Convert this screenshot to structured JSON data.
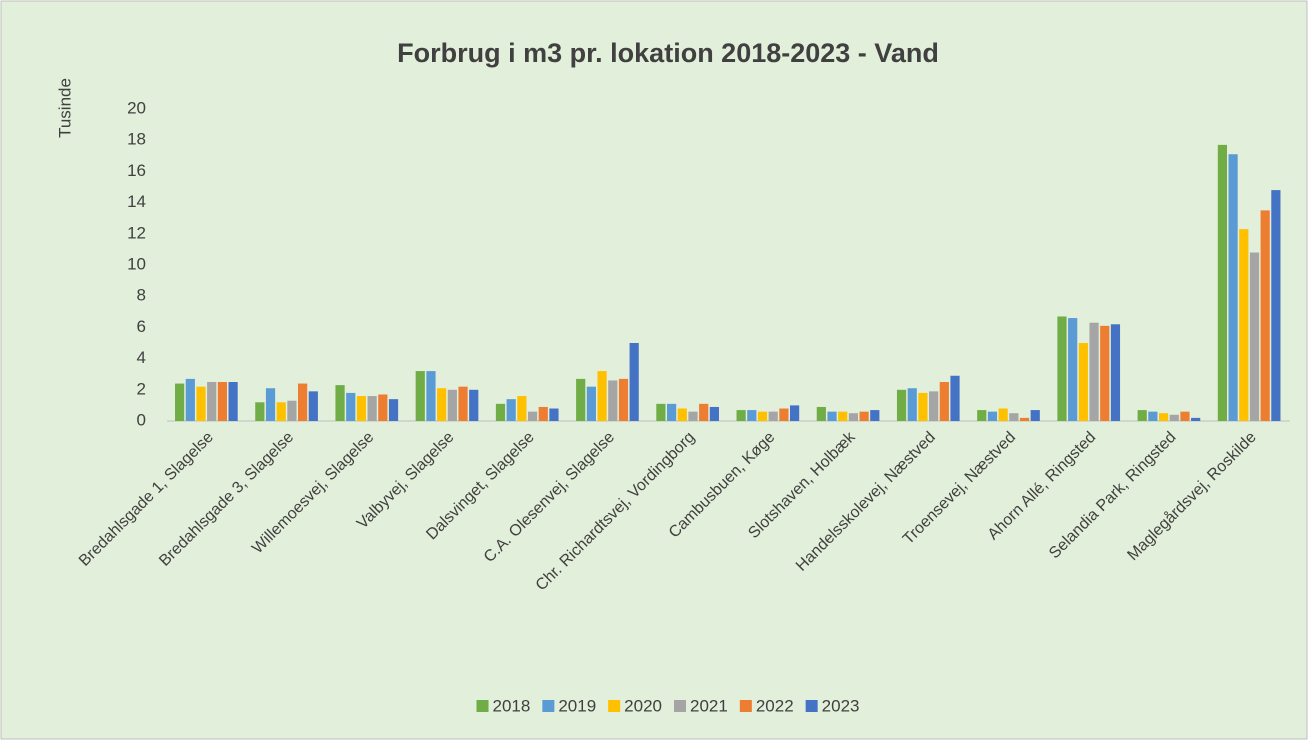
{
  "chart_data": {
    "type": "bar",
    "title": "Forbrug i m3 pr. lokation 2018-2023 - Vand",
    "y_label": "Tusinde",
    "categories": [
      "Bredahlsgade 1, Slagelse",
      "Bredahlsgade 3, Slagelse",
      "Willemoesvej, Slagelse",
      "Valbyvej, Slagelse",
      "Dalsvinget, Slagelse",
      "C.A. Olesenvej, Slagelse",
      "Chr. Richardtsvej, Vordingborg",
      "Cambusbuen, Køge",
      "Slotshaven, Holbæk",
      "Handelsskolevej, Næstved",
      "Troensevej, Næstved",
      "Ahorn Allé, Ringsted",
      "Selandia Park, Ringsted",
      "Maglegårdsvej, Roskilde"
    ],
    "series": [
      {
        "name": "2018",
        "color": "#70ad47",
        "values": [
          2.4,
          1.2,
          2.3,
          3.2,
          1.1,
          2.7,
          1.1,
          0.7,
          0.9,
          2.0,
          0.7,
          6.7,
          0.7,
          17.7
        ]
      },
      {
        "name": "2019",
        "color": "#5b9bd5",
        "values": [
          2.7,
          2.1,
          1.8,
          3.2,
          1.4,
          2.2,
          1.1,
          0.7,
          0.6,
          2.1,
          0.6,
          6.6,
          0.6,
          17.1
        ]
      },
      {
        "name": "2020",
        "color": "#ffc000",
        "values": [
          2.2,
          1.2,
          1.6,
          2.1,
          1.6,
          3.2,
          0.8,
          0.6,
          0.6,
          1.8,
          0.8,
          5.0,
          0.5,
          12.3
        ]
      },
      {
        "name": "2021",
        "color": "#a5a5a5",
        "values": [
          2.5,
          1.3,
          1.6,
          2.0,
          0.6,
          2.6,
          0.6,
          0.6,
          0.5,
          1.9,
          0.5,
          6.3,
          0.4,
          10.8
        ]
      },
      {
        "name": "2022",
        "color": "#ed7d31",
        "values": [
          2.5,
          2.4,
          1.7,
          2.2,
          0.9,
          2.7,
          1.1,
          0.8,
          0.6,
          2.5,
          0.2,
          6.1,
          0.6,
          13.5
        ]
      },
      {
        "name": "2023",
        "color": "#4472c4",
        "values": [
          2.5,
          1.9,
          1.4,
          2.0,
          0.8,
          5.0,
          0.9,
          1.0,
          0.7,
          2.9,
          0.7,
          6.2,
          0.2,
          14.8
        ]
      }
    ],
    "ylim": [
      0,
      20
    ],
    "yticks": [
      0,
      2,
      4,
      6,
      8,
      10,
      12,
      14,
      16,
      18,
      20
    ],
    "grid": false,
    "legend": "bottom"
  }
}
